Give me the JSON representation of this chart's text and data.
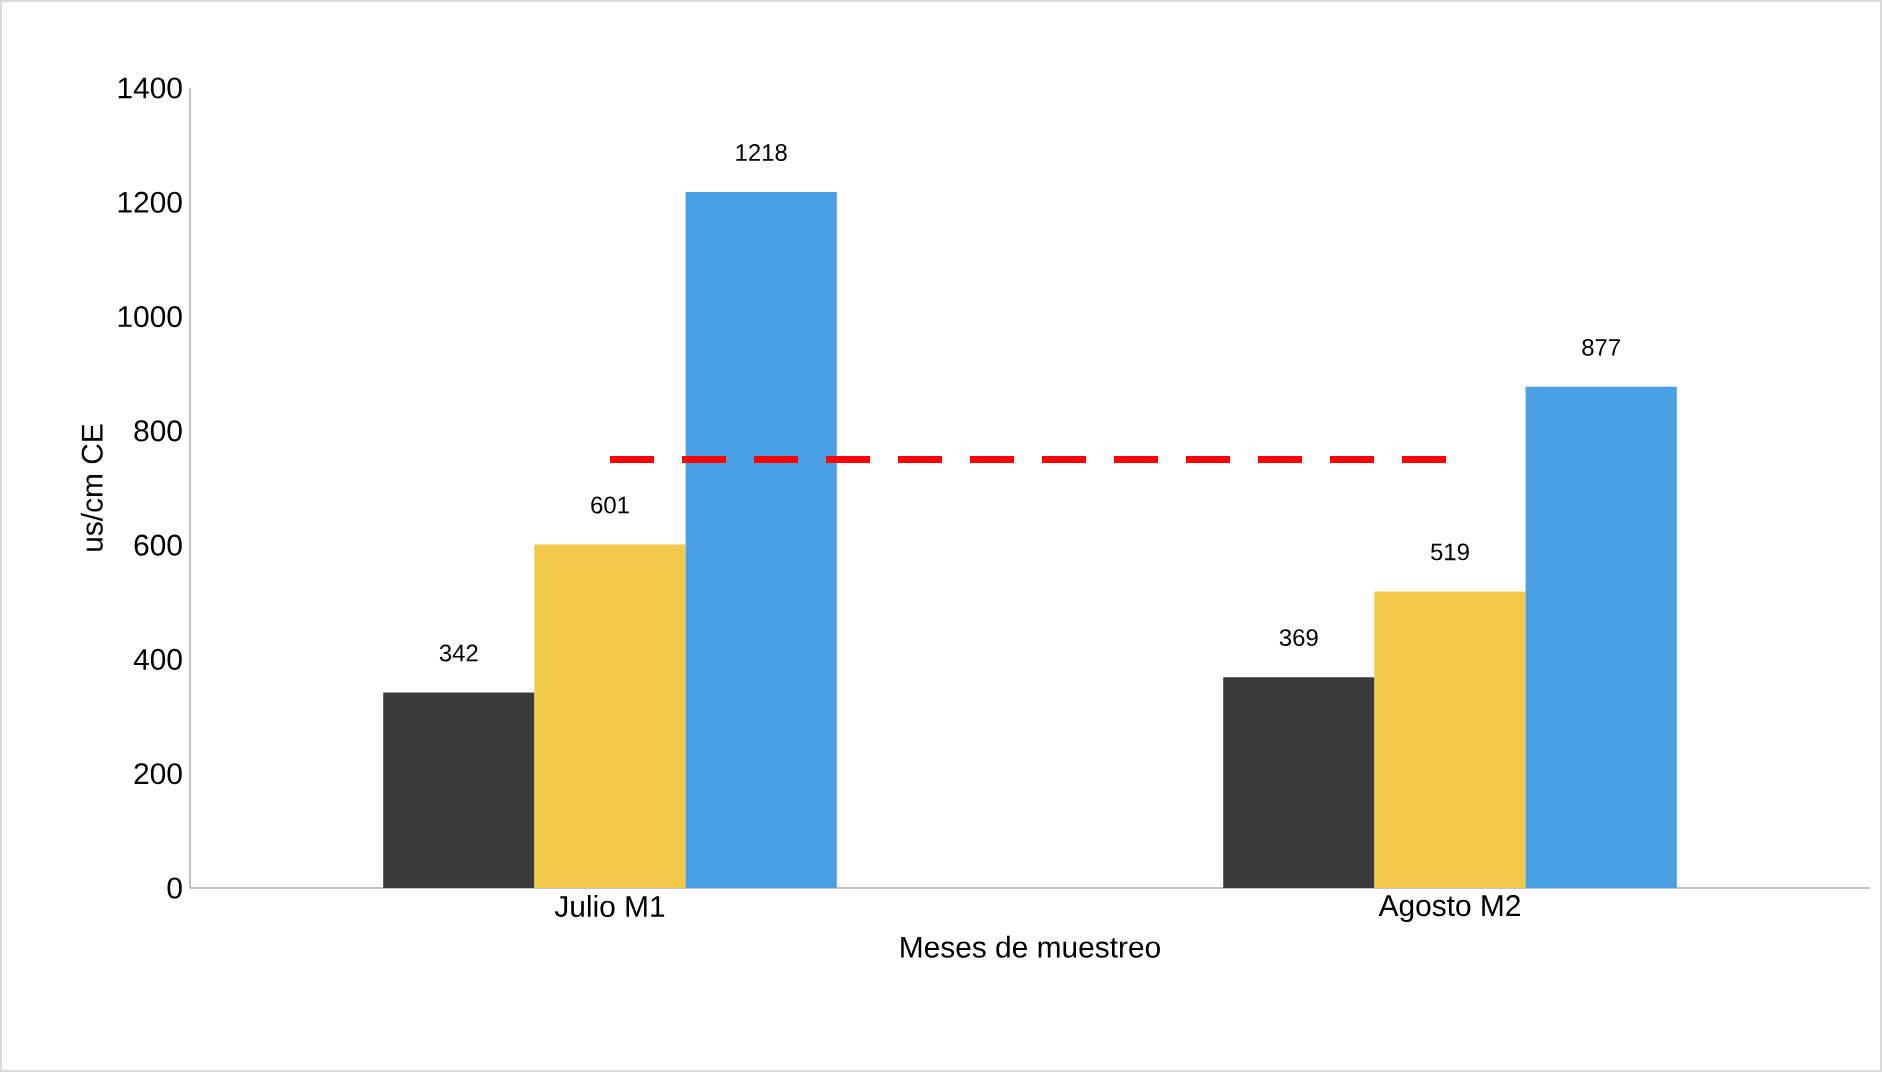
{
  "chart_data": {
    "type": "bar",
    "xlabel": "Meses de muestreo",
    "ylabel": "us/cm  CE",
    "categories": [
      "Julio  M1",
      "Agosto M2"
    ],
    "series": [
      {
        "color": "#3a3a3a",
        "values": [
          342,
          369
        ]
      },
      {
        "color": "#f2c84b",
        "values": [
          601,
          519
        ]
      },
      {
        "color": "#4a9fe3",
        "values": [
          1218,
          877
        ]
      }
    ],
    "ylim": [
      0,
      1400
    ],
    "yticks": [
      0,
      200,
      400,
      600,
      800,
      1000,
      1200,
      1400
    ],
    "data_labels": true,
    "ref_lines": [
      {
        "axis": "y",
        "value": 750,
        "color": "#ff0000",
        "line_style": "dashed"
      }
    ]
  }
}
